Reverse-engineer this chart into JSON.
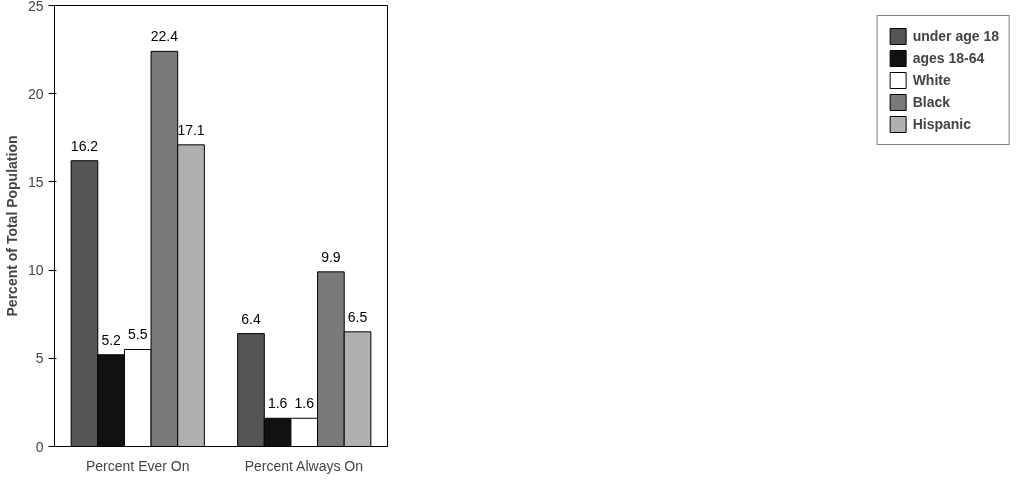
{
  "chart_data": {
    "type": "bar",
    "ylabel": "Percent of Total Population",
    "categories": [
      "Percent Ever On",
      "Percent Always On"
    ],
    "series": [
      {
        "name": "under age 18",
        "color": "#555555",
        "values": [
          16.2,
          6.4
        ]
      },
      {
        "name": "ages 18-64",
        "color": "#111111",
        "values": [
          5.2,
          1.6
        ]
      },
      {
        "name": "White",
        "color": "#ffffff",
        "values": [
          5.5,
          1.6
        ]
      },
      {
        "name": "Black",
        "color": "#7a7a7a",
        "values": [
          22.4,
          9.9
        ]
      },
      {
        "name": "Hispanic",
        "color": "#b0b0b0",
        "values": [
          17.1,
          6.5
        ]
      }
    ],
    "ylim": [
      0,
      25
    ],
    "yticks": [
      0,
      5,
      10,
      15,
      20,
      25
    ],
    "data_labels": true,
    "grid": false,
    "legend": "right"
  }
}
